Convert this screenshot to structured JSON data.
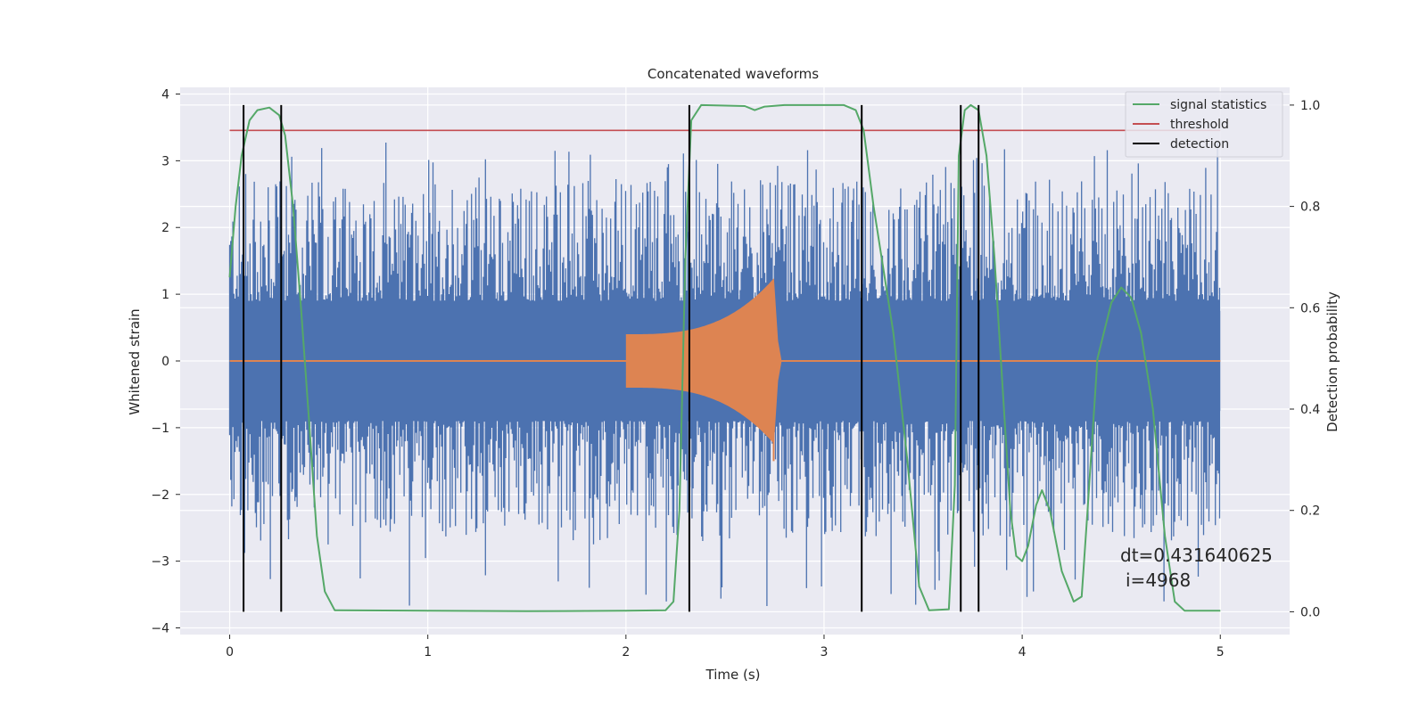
{
  "chart_data": {
    "type": "line",
    "title": "Concatenated waveforms",
    "xlabel": "Time (s)",
    "ylabel": "Whitened strain",
    "y2label": "Detection probability",
    "xlim": [
      -0.25,
      5.35
    ],
    "ylim": [
      -4.1,
      4.1
    ],
    "y2lim": [
      -0.045,
      1.035
    ],
    "x_ticks": [
      0,
      1,
      2,
      3,
      4,
      5
    ],
    "y_ticks": [
      -4,
      -3,
      -2,
      -1,
      0,
      1,
      2,
      3,
      4
    ],
    "y2_ticks": [
      0.0,
      0.2,
      0.4,
      0.6,
      0.8,
      1.0
    ],
    "x_tick_labels": [
      "0",
      "1",
      "2",
      "3",
      "4",
      "5"
    ],
    "y_tick_labels": [
      "−4",
      "−3",
      "−2",
      "−1",
      "0",
      "1",
      "2",
      "3",
      "4"
    ],
    "y2_tick_labels": [
      "0.0",
      "0.2",
      "0.4",
      "0.6",
      "0.8",
      "1.0"
    ],
    "grid": true,
    "legend_position": "top-right",
    "colors": {
      "background": "#eaeaf2",
      "grid": "#ffffff",
      "strain": "#4c72b0",
      "injection": "#dd8452",
      "statistic": "#55a868",
      "threshold": "#c44e52",
      "detection": "#000000"
    },
    "series": [
      {
        "name": "strain",
        "axis": "left",
        "style": "noise",
        "x_range": [
          0,
          5
        ],
        "dense_amplitude": 0.75,
        "spike_range": [
          -3.7,
          3.3
        ]
      },
      {
        "name": "injected waveform",
        "axis": "left",
        "style": "chirp",
        "x_start": 2.0,
        "x_peak": 2.75,
        "x_end": 3.0,
        "start_amplitude": 0.4,
        "peak_amplitude": 1.25,
        "min_value": -1.5
      },
      {
        "name": "signal statistics",
        "axis": "right",
        "points": [
          [
            0.0,
            0.66
          ],
          [
            0.03,
            0.8
          ],
          [
            0.06,
            0.9
          ],
          [
            0.1,
            0.97
          ],
          [
            0.14,
            0.99
          ],
          [
            0.2,
            0.995
          ],
          [
            0.25,
            0.98
          ],
          [
            0.28,
            0.94
          ],
          [
            0.32,
            0.8
          ],
          [
            0.36,
            0.6
          ],
          [
            0.4,
            0.38
          ],
          [
            0.44,
            0.15
          ],
          [
            0.48,
            0.04
          ],
          [
            0.53,
            0.003
          ],
          [
            1.0,
            0.002
          ],
          [
            1.5,
            0.001
          ],
          [
            2.0,
            0.002
          ],
          [
            2.2,
            0.003
          ],
          [
            2.24,
            0.02
          ],
          [
            2.27,
            0.2
          ],
          [
            2.3,
            0.7
          ],
          [
            2.33,
            0.97
          ],
          [
            2.38,
            1.0
          ],
          [
            2.6,
            0.998
          ],
          [
            2.65,
            0.99
          ],
          [
            2.7,
            0.997
          ],
          [
            2.8,
            1.0
          ],
          [
            3.0,
            1.0
          ],
          [
            3.1,
            1.0
          ],
          [
            3.16,
            0.99
          ],
          [
            3.2,
            0.95
          ],
          [
            3.25,
            0.8
          ],
          [
            3.35,
            0.55
          ],
          [
            3.42,
            0.3
          ],
          [
            3.48,
            0.05
          ],
          [
            3.53,
            0.003
          ],
          [
            3.63,
            0.005
          ],
          [
            3.66,
            0.25
          ],
          [
            3.68,
            0.9
          ],
          [
            3.71,
            0.99
          ],
          [
            3.74,
            1.0
          ],
          [
            3.78,
            0.99
          ],
          [
            3.82,
            0.9
          ],
          [
            3.86,
            0.7
          ],
          [
            3.9,
            0.45
          ],
          [
            3.94,
            0.2
          ],
          [
            3.97,
            0.11
          ],
          [
            4.0,
            0.1
          ],
          [
            4.03,
            0.13
          ],
          [
            4.07,
            0.21
          ],
          [
            4.1,
            0.24
          ],
          [
            4.14,
            0.2
          ],
          [
            4.2,
            0.08
          ],
          [
            4.26,
            0.02
          ],
          [
            4.3,
            0.03
          ],
          [
            4.33,
            0.2
          ],
          [
            4.38,
            0.5
          ],
          [
            4.45,
            0.61
          ],
          [
            4.5,
            0.64
          ],
          [
            4.55,
            0.62
          ],
          [
            4.6,
            0.55
          ],
          [
            4.66,
            0.4
          ],
          [
            4.72,
            0.15
          ],
          [
            4.77,
            0.02
          ],
          [
            4.82,
            0.002
          ],
          [
            5.0,
            0.002
          ]
        ]
      },
      {
        "name": "threshold",
        "axis": "right",
        "x_range": [
          0,
          5
        ],
        "value": 0.95
      },
      {
        "name": "detection",
        "axis": "right",
        "x_values": [
          0.07,
          0.26,
          2.32,
          3.19,
          3.69,
          3.78
        ],
        "y_range": [
          0,
          1.0
        ]
      }
    ],
    "legend": [
      "signal statistics",
      "threshold",
      "detection"
    ],
    "annotations": [
      "dt=0.431640625",
      "i=4968"
    ]
  }
}
